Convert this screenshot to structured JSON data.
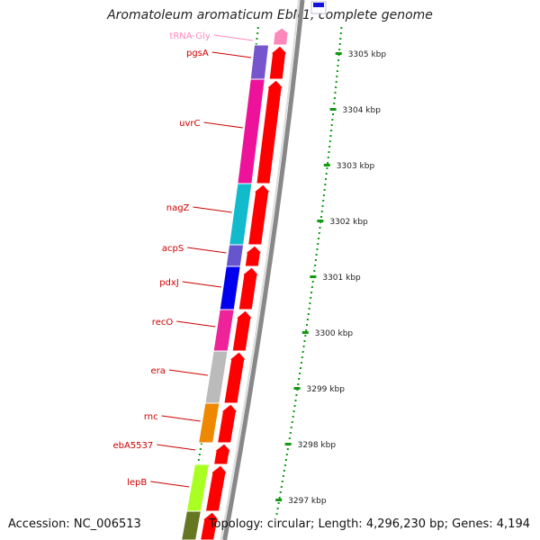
{
  "title": "Aromatoleum aromaticum EbN1, complete genome",
  "footer": {
    "accession_label": "Accession:",
    "accession_value": "NC_006513",
    "topology_label": "Topology:",
    "topology_value": "circular",
    "length_label": "Length:",
    "length_value": "4,296,230 bp",
    "genes_label": "Genes:",
    "genes_value": "4,194"
  },
  "colors": {
    "gene_label": "#cc0000",
    "trna_label": "#ff88bb",
    "cds_arrow": "#ff0000",
    "trna_arrow": "#ff88bb",
    "tick": "#119911",
    "backbone": "#888888",
    "highlight": "#1111dd"
  },
  "kbp_ticks": [
    "3305 kbp",
    "3304 kbp",
    "3303 kbp",
    "3302 kbp",
    "3301 kbp",
    "3300 kbp",
    "3299 kbp",
    "3298 kbp",
    "3297 kbp"
  ],
  "genes": [
    {
      "name": "tRNA-Gly",
      "type": "trna",
      "block_color": "#ffffff"
    },
    {
      "name": "pgsA",
      "type": "cds",
      "block_color": "#7755cc"
    },
    {
      "name": "uvrC",
      "type": "cds",
      "block_color": "#ee1199"
    },
    {
      "name": "nagZ",
      "type": "cds",
      "block_color": "#11bbcc"
    },
    {
      "name": "acpS",
      "type": "cds",
      "block_color": "#6655cc"
    },
    {
      "name": "pdxJ",
      "type": "cds",
      "block_color": "#0000ee"
    },
    {
      "name": "recO",
      "type": "cds",
      "block_color": "#ee2299"
    },
    {
      "name": "era",
      "type": "cds",
      "block_color": "#bbbbbb"
    },
    {
      "name": "rnc",
      "type": "cds",
      "block_color": "#ee8800"
    },
    {
      "name": "ebA5537",
      "type": "cds",
      "block_color": "#ffffff"
    },
    {
      "name": "lepB",
      "type": "cds",
      "block_color": "#aaff22"
    },
    {
      "name": "",
      "type": "cds",
      "block_color": "#667722"
    }
  ]
}
